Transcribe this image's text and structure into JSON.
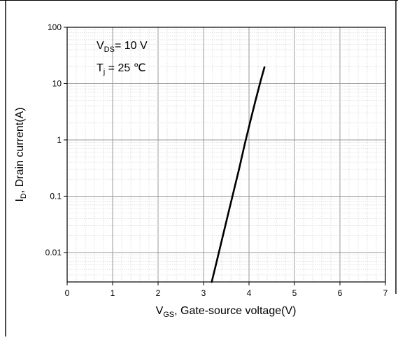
{
  "chart_data": {
    "type": "line",
    "title": "",
    "xlabel": {
      "main": "V",
      "sub": "GS",
      "rest": ", Gate-source voltage(V)"
    },
    "ylabel": {
      "main": "I",
      "sub": "D",
      "rest": ", Drain current(A)"
    },
    "xlim": [
      0,
      7
    ],
    "ylim": [
      0.003,
      100
    ],
    "yscale": "log",
    "grid": true,
    "x_ticks": [
      "0",
      "1",
      "2",
      "3",
      "4",
      "5",
      "6",
      "7"
    ],
    "y_ticks": [
      {
        "value": 100,
        "label": "100"
      },
      {
        "value": 10,
        "label": "10"
      },
      {
        "value": 1,
        "label": "1"
      },
      {
        "value": 0.1,
        "label": "0.1"
      },
      {
        "value": 0.01,
        "label": "0.01"
      }
    ],
    "annotations": [
      {
        "main": "V",
        "sub": "DS",
        "rest": "= 10 V"
      },
      {
        "main": "T",
        "sub": "j",
        "rest": " = 25 ℃"
      }
    ],
    "series": [
      {
        "x": [
          3.18,
          3.3,
          3.42,
          3.54,
          3.66,
          3.78,
          3.9,
          4.02,
          4.14,
          4.26,
          4.34
        ],
        "y": [
          0.003,
          0.0075,
          0.019,
          0.048,
          0.12,
          0.3,
          0.8,
          2.0,
          4.9,
          11.5,
          19.5
        ]
      }
    ]
  }
}
